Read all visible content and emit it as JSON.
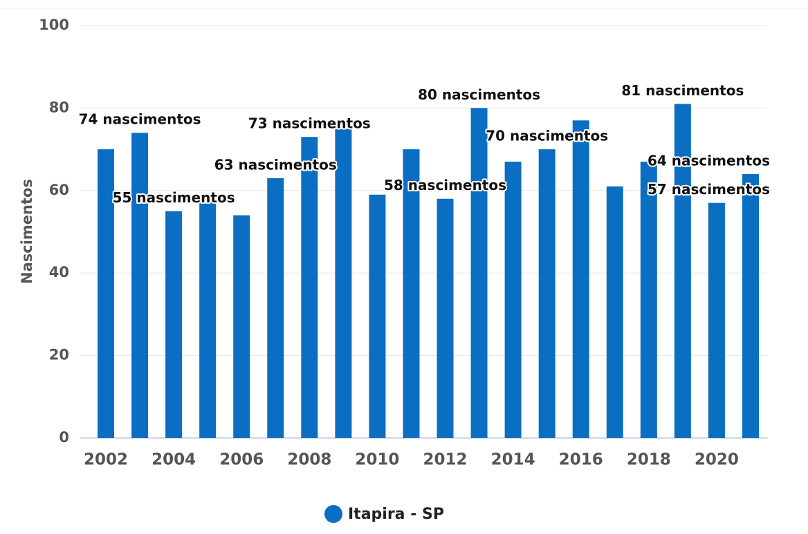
{
  "chart_data": {
    "type": "bar",
    "y_label": "Nascimentos",
    "categories": [
      "2002",
      null,
      "2004",
      null,
      "2006",
      null,
      "2008",
      null,
      "2010",
      null,
      "2012",
      null,
      "2014",
      null,
      "2016",
      null,
      "2018",
      null,
      "2020",
      null
    ],
    "series": [
      {
        "name": "Itapira - SP",
        "color": "#0a6fc2",
        "values": [
          70,
          74,
          55,
          58,
          54,
          63,
          73,
          75,
          59,
          70,
          58,
          80,
          67,
          70,
          77,
          61,
          67,
          81,
          57,
          64
        ],
        "value_labels": [
          null,
          "74 nascimentos",
          "55 nascimentos",
          null,
          null,
          "63 nascimentos",
          "73 nascimentos",
          null,
          null,
          null,
          "58 nascimentos",
          "80 nascimentos",
          null,
          "70 nascimentos",
          null,
          null,
          null,
          "81 nascimentos",
          "57 nascimentos",
          "64 nascimentos"
        ]
      }
    ],
    "ylim": [
      0,
      100
    ],
    "yticks": [
      0,
      20,
      40,
      60,
      80,
      100
    ],
    "grid": true,
    "legend": "bottom"
  }
}
